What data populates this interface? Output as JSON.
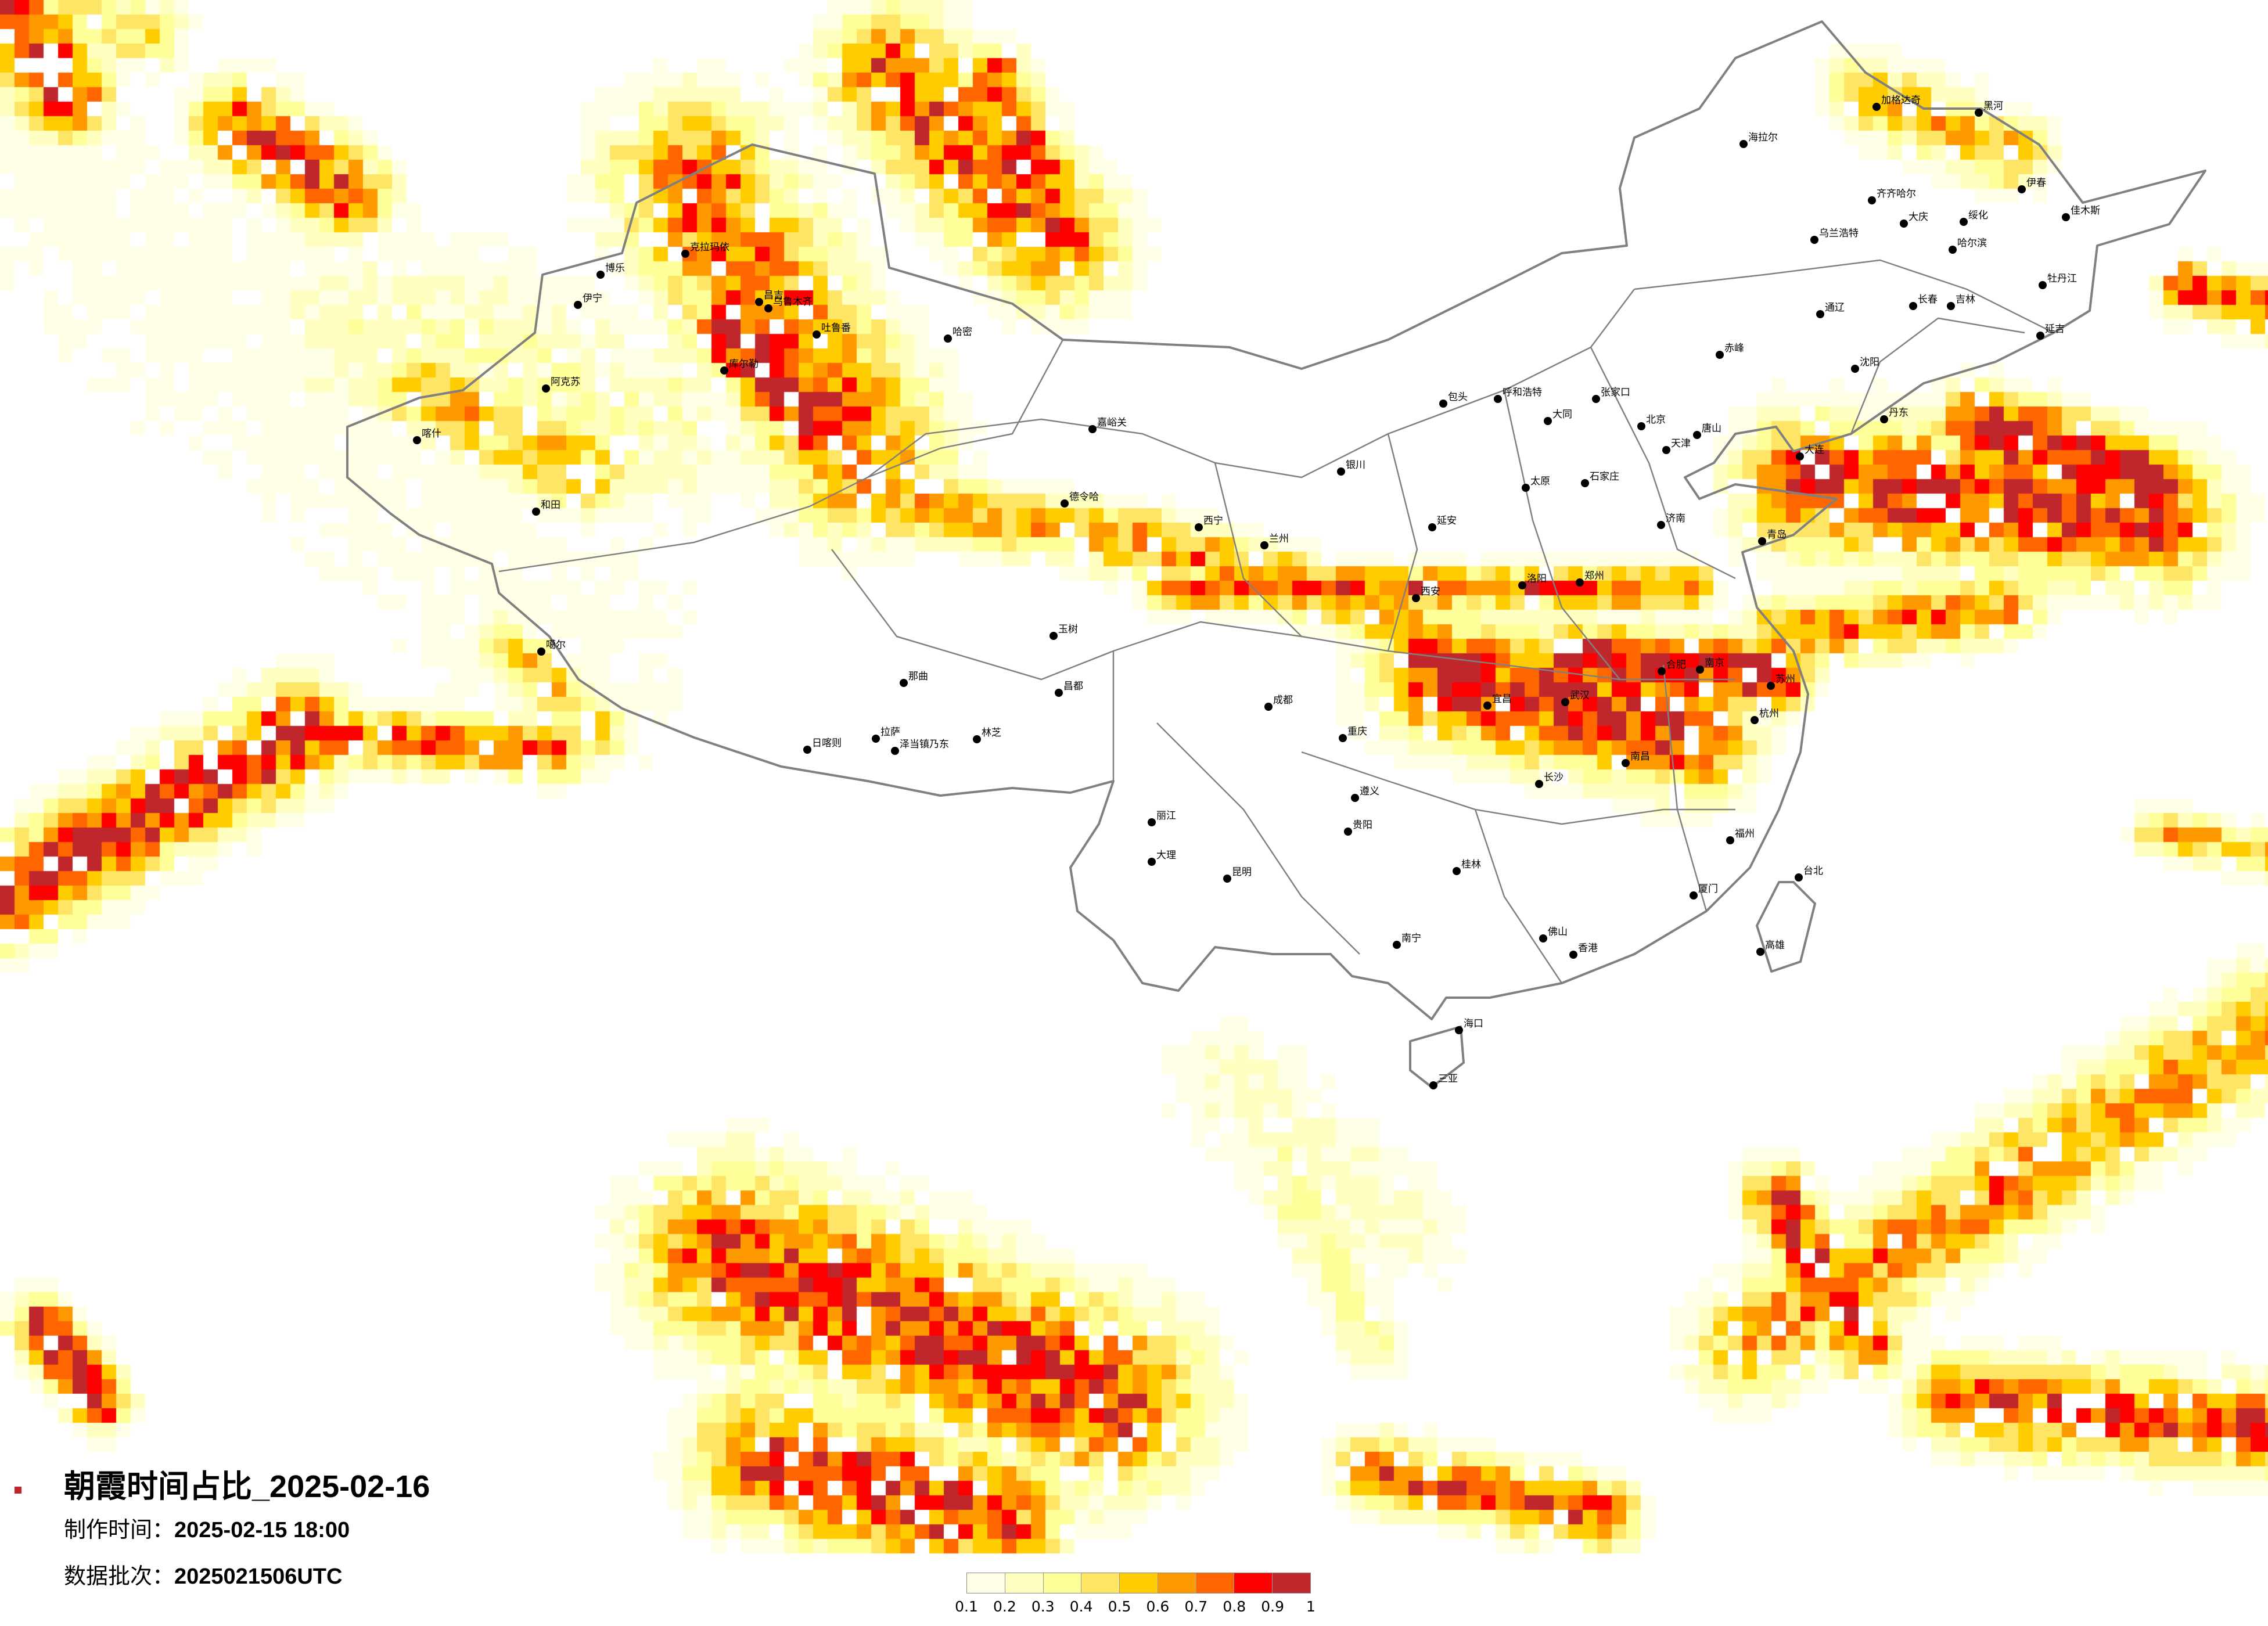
{
  "title": "朝霞时间占比_2025-02-16",
  "meta": {
    "made_label": "制作时间：",
    "made_value": "2025-02-15 18:00",
    "batch_label": "数据批次：",
    "batch_value": "2025021506UTC"
  },
  "legend": {
    "labels": [
      "0.1",
      "0.2",
      "0.3",
      "0.4",
      "0.5",
      "0.6",
      "0.7",
      "0.8",
      "0.9",
      "1"
    ],
    "colors": [
      "#FFFFE8",
      "#FFFFC2",
      "#FFFF99",
      "#FFE566",
      "#FFCC00",
      "#FF9900",
      "#FF6600",
      "#FF0000",
      "#C0272D"
    ]
  },
  "map": {
    "border_color": "#808080",
    "city_dot_color": "#000000",
    "cities": [
      "乌鲁木齐",
      "克拉玛依",
      "博乐",
      "伊宁",
      "昌吉",
      "吐鲁番",
      "哈密",
      "库尔勒",
      "阿克苏",
      "喀什",
      "和田",
      "噶尔",
      "德令哈",
      "玉树",
      "那曲",
      "昌都",
      "日喀则",
      "拉萨",
      "泽当镇乃东",
      "林芝",
      "嘉峪关",
      "海拉尔",
      "加格达奇",
      "黑河",
      "齐齐哈尔",
      "大庆",
      "哈尔滨",
      "绥化",
      "伊春",
      "佳木斯",
      "牡丹江",
      "长春",
      "吉林",
      "沈阳",
      "大连",
      "丹东",
      "延吉",
      "赤峰",
      "通辽",
      "乌兰浩特",
      "北京",
      "天津",
      "石家庄",
      "太原",
      "呼和浩特",
      "包头",
      "银川",
      "兰州",
      "西宁",
      "西安",
      "郑州",
      "济南",
      "青岛",
      "武汉",
      "合肥",
      "南京",
      "成都",
      "重庆",
      "长沙",
      "南昌",
      "杭州",
      "张家口",
      "大同",
      "延安",
      "洛阳",
      "宜昌",
      "苏州",
      "唐山",
      "昆明",
      "贵阳",
      "南宁",
      "佛山",
      "香港",
      "福州",
      "厦门",
      "海口",
      "三亚",
      "台北",
      "高雄",
      "桂林",
      "大理",
      "丽江",
      "遵义"
    ]
  }
}
